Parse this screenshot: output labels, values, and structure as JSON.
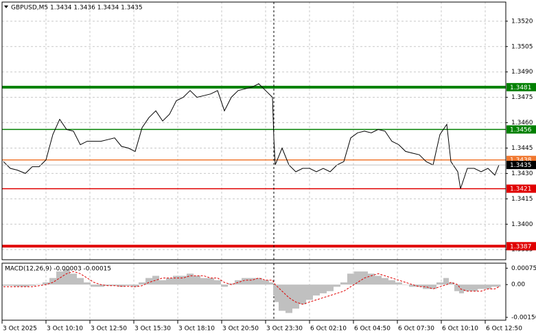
{
  "chart_data": [
    {
      "type": "line",
      "title": "GBPUSD,M5 1.3434 1.3436 1.3434 1.3435",
      "color": "#000000",
      "x": [
        1,
        6,
        11,
        17,
        22,
        27,
        32,
        37,
        42,
        47,
        52,
        57,
        62,
        67,
        72,
        77,
        82,
        87,
        92,
        97,
        102,
        107,
        112,
        117,
        122,
        127,
        132,
        137,
        142,
        147,
        152,
        157,
        162,
        167,
        172,
        177,
        182,
        187,
        192,
        197,
        198,
        199,
        204,
        209,
        214,
        219,
        224,
        229,
        234,
        239,
        244,
        249,
        254,
        259,
        264,
        269,
        274,
        279,
        284,
        289,
        294,
        299,
        304,
        309,
        314,
        319,
        324,
        327,
        332,
        334,
        339,
        344,
        349,
        354,
        359,
        362
      ],
      "values": [
        1.3437,
        1.3433,
        1.3432,
        1.343,
        1.3434,
        1.3434,
        1.3438,
        1.3453,
        1.3462,
        1.3456,
        1.3455,
        1.3447,
        1.3449,
        1.3449,
        1.3449,
        1.345,
        1.3451,
        1.3446,
        1.3445,
        1.3443,
        1.3457,
        1.3463,
        1.3467,
        1.3461,
        1.3465,
        1.3473,
        1.3475,
        1.3479,
        1.3475,
        1.3476,
        1.3477,
        1.3479,
        1.3467,
        1.3475,
        1.3479,
        1.348,
        1.3481,
        1.3483,
        1.3479,
        1.3475,
        1.3451,
        1.3435,
        1.3445,
        1.3435,
        1.3431,
        1.3433,
        1.3433,
        1.3431,
        1.3433,
        1.3431,
        1.3435,
        1.3437,
        1.3451,
        1.3454,
        1.3455,
        1.3454,
        1.3456,
        1.3455,
        1.3449,
        1.3447,
        1.3443,
        1.3442,
        1.3441,
        1.3437,
        1.3435,
        1.3453,
        1.3459,
        1.3437,
        1.3431,
        1.3421,
        1.3433,
        1.3433,
        1.3431,
        1.3433,
        1.3429,
        1.3435
      ],
      "xlim": [
        0,
        367
      ],
      "ylim": [
        1.3379,
        1.35313
      ],
      "yticks": [
        {
          "value": 1.352,
          "label": "1.3520"
        },
        {
          "value": 1.3505,
          "label": "1.3505"
        },
        {
          "value": 1.349,
          "label": "1.3490"
        },
        {
          "value": 1.3475,
          "label": "1.3475"
        },
        {
          "value": 1.346,
          "label": "1.3460"
        },
        {
          "value": 1.3445,
          "label": "1.3445"
        },
        {
          "value": 1.343,
          "label": "1.3430"
        },
        {
          "value": 1.3415,
          "label": "1.3415"
        },
        {
          "value": 1.34,
          "label": "1.3400"
        },
        {
          "value": 1.3385,
          "label": "1.3385"
        }
      ],
      "levels": [
        {
          "value": 1.3481,
          "color": "#008000",
          "thick": true
        },
        {
          "value": 1.3456,
          "color": "#008000",
          "thick": false
        },
        {
          "value": 1.3438,
          "color": "#f07830",
          "thick": false
        },
        {
          "value": 1.3421,
          "color": "#e00000",
          "thick": false
        },
        {
          "value": 1.3387,
          "color": "#e00000",
          "thick": true
        }
      ],
      "vline_x": 198,
      "grid": true
    },
    {
      "type": "macd",
      "title": "MACD(12,26,9) -0.00003 -0.00015",
      "x": [
        1,
        6,
        11,
        17,
        22,
        27,
        32,
        37,
        42,
        47,
        52,
        57,
        62,
        67,
        72,
        77,
        82,
        87,
        92,
        97,
        102,
        107,
        112,
        117,
        122,
        127,
        132,
        137,
        142,
        147,
        152,
        157,
        162,
        167,
        172,
        177,
        182,
        187,
        192,
        197,
        198,
        199,
        204,
        209,
        214,
        219,
        224,
        229,
        234,
        239,
        244,
        249,
        254,
        259,
        264,
        269,
        274,
        279,
        284,
        289,
        294,
        299,
        304,
        309,
        314,
        319,
        324,
        327,
        332,
        334,
        339,
        344,
        349,
        354,
        359,
        362
      ],
      "series": [
        {
          "name": "MACD",
          "color": "#c0c0c0",
          "values": [
            -5e-05,
            -5e-05,
            -8e-05,
            -0.0001,
            -5e-05,
            2e-05,
            0.0001,
            0.0003,
            0.0006,
            0.0007,
            0.0005,
            0.0003,
            0.0001,
            -0.0001,
            -0.0001,
            -5e-05,
            -5e-05,
            -0.0001,
            -5e-05,
            -0.0001,
            0.0001,
            0.0003,
            0.0004,
            0.0002,
            0.0003,
            0.0004,
            0.0004,
            0.0005,
            0.0004,
            0.0003,
            0.0003,
            0.0002,
            -0.0001,
            5e-05,
            0.0002,
            0.0003,
            0.0003,
            0.0003,
            0.0002,
            0.0001,
            -0.0005,
            -0.0008,
            -0.0012,
            -0.0013,
            -0.0011,
            -0.0009,
            -0.0007,
            -0.0005,
            -0.0004,
            -0.0003,
            -0.0001,
            0.0001,
            0.0005,
            0.0006,
            0.0006,
            0.0005,
            0.0004,
            0.0003,
            0.0002,
            0.0001,
            0,
            -0.0001,
            -0.0001,
            -0.0002,
            -0.0002,
            0.0001,
            0.0003,
            0.0001,
            -0.0003,
            -0.0004,
            -0.0003,
            -0.0003,
            -0.0002,
            -0.0002,
            -0.0001,
            -0.0001
          ]
        },
        {
          "name": "Signal",
          "color": "#e00000",
          "values": [
            -0.0001,
            -0.0001,
            -0.0001,
            -0.0001,
            -0.0001,
            -5e-05,
            0,
            0.0001,
            0.0003,
            0.0005,
            0.0006,
            0.0005,
            0.0003,
            0.0001,
            0,
            -5e-05,
            -5e-05,
            -8e-05,
            -8e-05,
            -0.0001,
            -5e-05,
            0.0001,
            0.0002,
            0.0003,
            0.0003,
            0.0003,
            0.0003,
            0.0004,
            0.0004,
            0.0004,
            0.0003,
            0.0003,
            0.0001,
            0,
            0.0001,
            0.0002,
            0.0002,
            0.0003,
            0.0002,
            0.0002,
            0.0001,
            0,
            -0.0003,
            -0.0006,
            -0.0008,
            -0.0009,
            -0.0008,
            -0.0007,
            -0.0006,
            -0.0005,
            -0.0004,
            -0.0003,
            -0.0001,
            0.0001,
            0.0003,
            0.0004,
            0.0005,
            0.0004,
            0.0003,
            0.0002,
            0.0001,
            0,
            -0.0001,
            -0.0001,
            -0.0002,
            -0.0001,
            0,
            0.0001,
            0,
            -0.0002,
            -0.0003,
            -0.0003,
            -0.0003,
            -0.0002,
            -0.0002,
            -0.0001
          ]
        }
      ],
      "xlim": [
        0,
        367
      ],
      "ylim": [
        -0.00163,
        0.00098
      ],
      "yticks": [
        0.00075,
        {
          "value": 0,
          "label": "0.00"
        },
        {
          "value": -0.0015,
          "label": "-0.00150"
        }
      ],
      "xticks": [
        {
          "value": 0,
          "label": "3 Oct 2025"
        },
        {
          "value": 32,
          "label": "3 Oct 10:10"
        },
        {
          "value": 64,
          "label": "3 Oct 12:50"
        },
        {
          "value": 96,
          "label": "3 Oct 15:30"
        },
        {
          "value": 128,
          "label": "3 Oct 18:10"
        },
        {
          "value": 160,
          "label": "3 Oct 20:50"
        },
        {
          "value": 192,
          "label": "3 Oct 23:30"
        },
        {
          "value": 224,
          "label": "6 Oct 02:10"
        },
        {
          "value": 256,
          "label": "6 Oct 04:50"
        },
        {
          "value": 288,
          "label": "6 Oct 07:30"
        },
        {
          "value": 320,
          "label": "6 Oct 10:10"
        },
        {
          "value": 352,
          "label": "6 Oct 12:50"
        }
      ],
      "grid": true
    }
  ]
}
